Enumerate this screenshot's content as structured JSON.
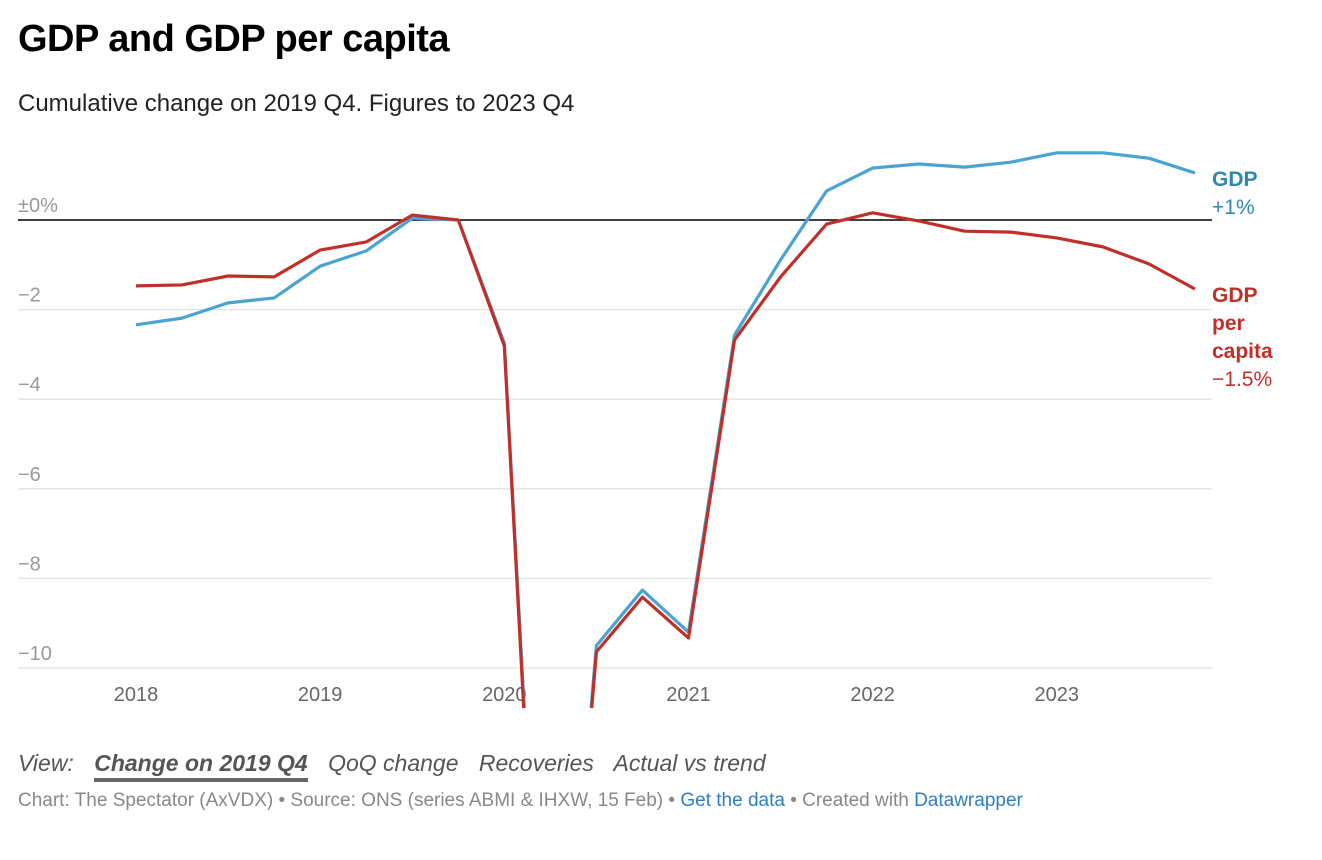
{
  "title": "GDP and GDP per capita",
  "subtitle": "Cumulative change on 2019 Q4. Figures to 2023 Q4",
  "views": {
    "label": "View:",
    "options": [
      "Change on 2019 Q4",
      "QoQ change",
      "Recoveries",
      "Actual vs trend"
    ],
    "active": 0
  },
  "footer": {
    "credit": "Chart: The Spectator (AxVDX) • Source: ONS (series ABMI & IHXW, 15 Feb) • ",
    "get_data": "Get the data",
    "sep": " • Created with ",
    "datawrapper": "Datawrapper"
  },
  "chart_data": {
    "type": "line",
    "title": "GDP and GDP per capita",
    "subtitle": "Cumulative change on 2019 Q4. Figures to 2023 Q4",
    "x": [
      "2018 Q1",
      "2018 Q2",
      "2018 Q3",
      "2018 Q4",
      "2019 Q1",
      "2019 Q2",
      "2019 Q3",
      "2019 Q4",
      "2020 Q1",
      "2020 Q2",
      "2020 Q3",
      "2020 Q4",
      "2021 Q1",
      "2021 Q2",
      "2021 Q3",
      "2021 Q4",
      "2022 Q1",
      "2022 Q2",
      "2022 Q3",
      "2022 Q4",
      "2023 Q1",
      "2023 Q2",
      "2023 Q3",
      "2023 Q4"
    ],
    "x_ticks": [
      "2018",
      "2019",
      "2020",
      "2021",
      "2022",
      "2023"
    ],
    "y_ticks": [
      {
        "v": 0,
        "label": "±0%"
      },
      {
        "v": -2,
        "label": "−2"
      },
      {
        "v": -4,
        "label": "−4"
      },
      {
        "v": -6,
        "label": "−6"
      },
      {
        "v": -8,
        "label": "−8"
      },
      {
        "v": -10,
        "label": "−10"
      }
    ],
    "ylim": [
      -10.9,
      2.2
    ],
    "grid": true,
    "series": [
      {
        "name": "GDP",
        "end_label": "+1%",
        "color": "#4aa3d0",
        "label_color": "#2f86b3",
        "values": [
          -2.34,
          -2.19,
          -1.85,
          -1.74,
          -1.03,
          -0.69,
          0.04,
          0,
          -2.75,
          -21.6,
          -9.5,
          -8.26,
          -9.2,
          -2.57,
          -0.89,
          0.65,
          1.16,
          1.25,
          1.18,
          1.29,
          1.5,
          1.5,
          1.38,
          1.05
        ]
      },
      {
        "name": "GDP per capita",
        "name_lines": [
          "GDP",
          "per",
          "capita"
        ],
        "end_label": "−1.5%",
        "color": "#c0302a",
        "label_color": "#c0302a",
        "values": [
          -1.47,
          -1.45,
          -1.25,
          -1.27,
          -0.67,
          -0.49,
          0.11,
          0,
          -2.81,
          -22.0,
          -9.64,
          -8.42,
          -9.33,
          -2.68,
          -1.27,
          -0.09,
          0.16,
          -0.02,
          -0.25,
          -0.27,
          -0.4,
          -0.6,
          -0.98,
          -1.54
        ]
      }
    ]
  }
}
